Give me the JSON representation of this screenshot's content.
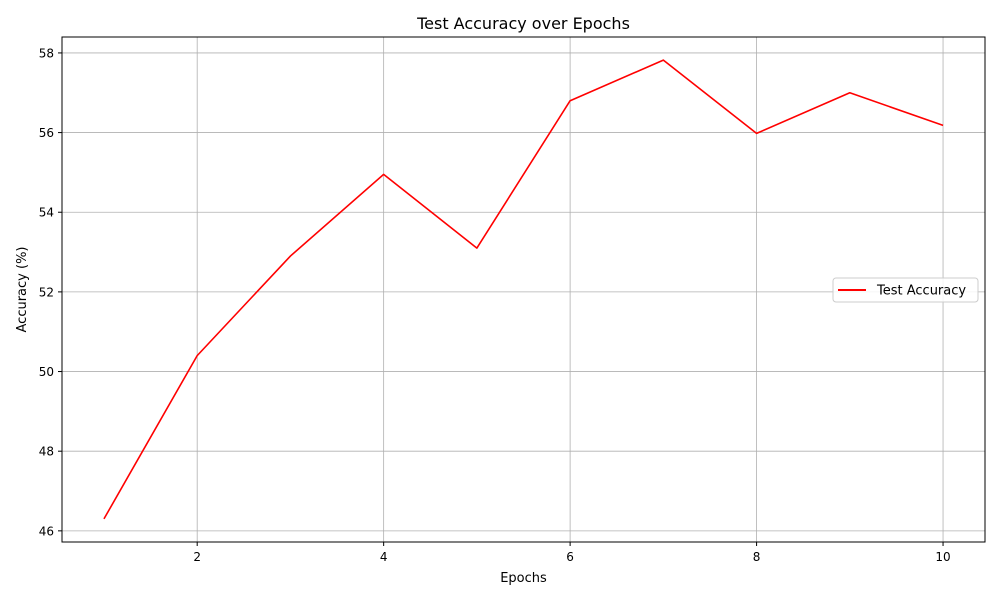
{
  "chart_data": {
    "type": "line",
    "title": "Test Accuracy over Epochs",
    "xlabel": "Epochs",
    "ylabel": "Accuracy (%)",
    "xlim": [
      0.55,
      10.45
    ],
    "ylim": [
      45.72,
      58.4
    ],
    "x_ticks": [
      2,
      4,
      6,
      8,
      10
    ],
    "y_ticks": [
      46,
      48,
      50,
      52,
      54,
      56,
      58
    ],
    "grid": true,
    "legend_position": "center-right",
    "series": [
      {
        "name": "Test Accuracy",
        "color": "#ff0000",
        "x": [
          1,
          2,
          3,
          4,
          5,
          6,
          7,
          8,
          9,
          10
        ],
        "y": [
          46.3,
          50.4,
          52.9,
          54.95,
          53.1,
          56.8,
          57.82,
          55.98,
          57.0,
          56.18
        ]
      }
    ]
  }
}
